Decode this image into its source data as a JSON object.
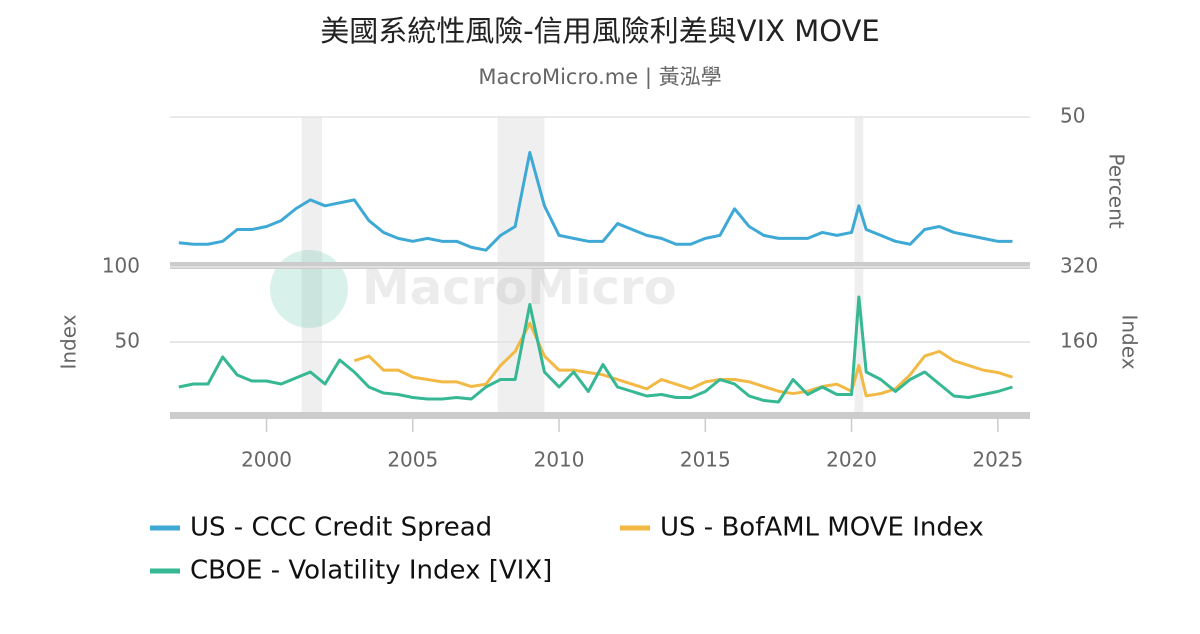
{
  "watermark": "MacroMicro",
  "chart_data": [
    {
      "type": "line",
      "title": "美國系統性風險-信用風險利差與VIX MOVE",
      "subtitle": "MacroMicro.me | 黃泓學",
      "y2_label": "Percent",
      "xlim": [
        1996.7,
        2026.1
      ],
      "y2lim": [
        0,
        50
      ],
      "y2ticks": [
        50
      ],
      "grid": true,
      "shaded_ranges": [
        [
          2001.2,
          2001.9
        ],
        [
          2007.9,
          2009.5
        ],
        [
          2020.1,
          2020.4
        ]
      ],
      "x": [
        1997,
        1997.5,
        1998,
        1998.5,
        1999,
        1999.5,
        2000,
        2000.5,
        2001,
        2001.5,
        2002,
        2002.5,
        2003,
        2003.5,
        2004,
        2004.5,
        2005,
        2005.5,
        2006,
        2006.5,
        2007,
        2007.5,
        2008,
        2008.5,
        2009,
        2009.5,
        2010,
        2010.5,
        2011,
        2011.5,
        2012,
        2012.5,
        2013,
        2013.5,
        2014,
        2014.5,
        2015,
        2015.5,
        2016,
        2016.5,
        2017,
        2017.5,
        2018,
        2018.5,
        2019,
        2019.5,
        2020,
        2020.25,
        2020.5,
        2021,
        2021.5,
        2022,
        2022.5,
        2023,
        2023.5,
        2024,
        2024.5,
        2025,
        2025.5
      ],
      "series": [
        {
          "name": "US - CCC Credit Spread",
          "color": "#3fa9d5",
          "axis": "y2",
          "values": [
            7.5,
            7,
            7,
            8,
            12,
            12,
            13,
            15,
            19,
            22,
            20,
            21,
            22,
            15,
            11,
            9,
            8,
            9,
            8,
            8,
            6,
            5,
            10,
            13,
            38,
            20,
            10,
            9,
            8,
            8,
            14,
            12,
            10,
            9,
            7,
            7,
            9,
            10,
            19,
            13,
            10,
            9,
            9,
            9,
            11,
            10,
            11,
            20,
            12,
            10,
            8,
            7,
            12,
            13,
            11,
            10,
            9,
            8,
            8
          ]
        }
      ]
    },
    {
      "type": "line",
      "y_label": "Index",
      "y2_label": "Index",
      "xlim": [
        1996.7,
        2026.1
      ],
      "ylim": [
        0,
        100
      ],
      "yticks": [
        50,
        100
      ],
      "y2lim": [
        0,
        320
      ],
      "y2ticks": [
        160,
        320
      ],
      "grid": true,
      "xticks": [
        2000,
        2005,
        2010,
        2015,
        2020,
        2025
      ],
      "x": [
        1997,
        1997.5,
        1998,
        1998.5,
        1999,
        1999.5,
        2000,
        2000.5,
        2001,
        2001.5,
        2002,
        2002.5,
        2003,
        2003.5,
        2004,
        2004.5,
        2005,
        2005.5,
        2006,
        2006.5,
        2007,
        2007.5,
        2008,
        2008.5,
        2009,
        2009.5,
        2010,
        2010.5,
        2011,
        2011.5,
        2012,
        2012.5,
        2013,
        2013.5,
        2014,
        2014.5,
        2015,
        2015.5,
        2016,
        2016.5,
        2017,
        2017.5,
        2018,
        2018.5,
        2019,
        2019.5,
        2020,
        2020.25,
        2020.5,
        2021,
        2021.5,
        2022,
        2022.5,
        2023,
        2023.5,
        2024,
        2024.5,
        2025,
        2025.5
      ],
      "series": [
        {
          "name": "US - BofAML MOVE Index",
          "color": "#f2b944",
          "axis": "y2",
          "values": [
            null,
            null,
            null,
            null,
            null,
            null,
            null,
            null,
            null,
            null,
            null,
            null,
            120,
            130,
            100,
            100,
            85,
            80,
            75,
            75,
            65,
            70,
            110,
            140,
            200,
            130,
            100,
            100,
            95,
            90,
            80,
            70,
            60,
            80,
            70,
            60,
            75,
            80,
            80,
            75,
            65,
            55,
            50,
            55,
            65,
            70,
            55,
            110,
            45,
            50,
            60,
            90,
            130,
            140,
            120,
            110,
            100,
            95,
            85
          ]
        },
        {
          "name": "CBOE - Volatility Index [VIX]",
          "color": "#35b893",
          "values": [
            20,
            22,
            22,
            40,
            28,
            24,
            24,
            22,
            26,
            30,
            22,
            38,
            30,
            20,
            16,
            15,
            13,
            12,
            12,
            13,
            12,
            20,
            25,
            25,
            75,
            30,
            20,
            30,
            17,
            35,
            20,
            17,
            14,
            15,
            13,
            13,
            17,
            25,
            22,
            14,
            11,
            10,
            25,
            15,
            20,
            15,
            15,
            80,
            30,
            25,
            17,
            25,
            30,
            22,
            14,
            13,
            15,
            17,
            20
          ]
        }
      ]
    }
  ]
}
